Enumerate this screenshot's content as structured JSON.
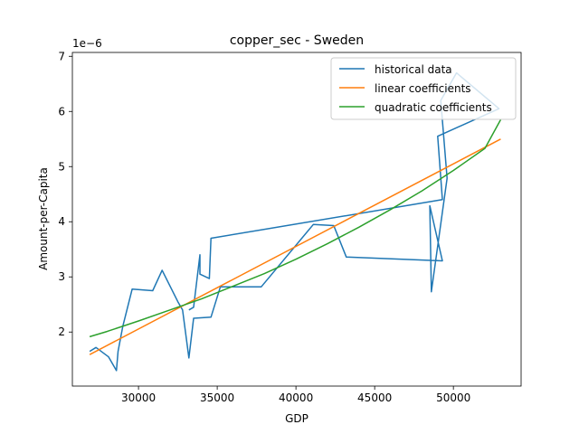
{
  "chart_data": {
    "type": "line",
    "title": "copper_sec - Sweden",
    "xlabel": "GDP",
    "ylabel": "Amount-per-Capita",
    "y_offset_label": "1e−6",
    "xlim": [
      25800,
      54300
    ],
    "ylim": [
      1.02,
      7.07
    ],
    "x_ticks": [
      30000,
      35000,
      40000,
      45000,
      50000
    ],
    "x_tick_labels": [
      "30000",
      "35000",
      "40000",
      "45000",
      "50000"
    ],
    "y_ticks": [
      2,
      3,
      4,
      5,
      6,
      7
    ],
    "y_tick_labels": [
      "2",
      "3",
      "4",
      "5",
      "6",
      "7"
    ],
    "grid": false,
    "legend_position": "top-right",
    "series": [
      {
        "name": "historical data",
        "color": "#1f77b4",
        "points": [
          [
            26900,
            1.65
          ],
          [
            27300,
            1.72
          ],
          [
            28100,
            1.55
          ],
          [
            28600,
            1.3
          ],
          [
            28700,
            1.65
          ],
          [
            29000,
            2.1
          ],
          [
            29600,
            2.78
          ],
          [
            30900,
            2.75
          ],
          [
            31500,
            3.12
          ],
          [
            32500,
            2.55
          ],
          [
            32800,
            2.4
          ],
          [
            33200,
            1.53
          ],
          [
            33500,
            2.25
          ],
          [
            34600,
            2.27
          ],
          [
            35200,
            2.82
          ],
          [
            37800,
            2.82
          ],
          [
            41100,
            3.95
          ],
          [
            42400,
            3.93
          ],
          [
            43200,
            3.36
          ],
          [
            49300,
            3.29
          ],
          [
            48500,
            4.29
          ],
          [
            48600,
            2.73
          ],
          [
            49600,
            4.79
          ],
          [
            49200,
            6.2
          ],
          [
            50200,
            6.7
          ],
          [
            52900,
            6.05
          ],
          [
            49000,
            5.55
          ],
          [
            49300,
            4.4
          ],
          [
            34600,
            3.7
          ],
          [
            34500,
            2.97
          ],
          [
            33900,
            3.05
          ],
          [
            33900,
            3.4
          ],
          [
            33500,
            2.45
          ],
          [
            33200,
            2.4
          ]
        ]
      },
      {
        "name": "linear coefficients",
        "color": "#ff7f0e",
        "points": [
          [
            26900,
            1.59
          ],
          [
            53000,
            5.5
          ]
        ]
      },
      {
        "name": "quadratic coefficients",
        "color": "#2ca02c",
        "points": [
          [
            26900,
            1.915
          ],
          [
            28000,
            2.01
          ],
          [
            30000,
            2.2
          ],
          [
            32000,
            2.4
          ],
          [
            34000,
            2.6
          ],
          [
            36000,
            2.83
          ],
          [
            38000,
            3.06
          ],
          [
            40000,
            3.32
          ],
          [
            42000,
            3.6
          ],
          [
            44000,
            3.9
          ],
          [
            46000,
            4.22
          ],
          [
            48000,
            4.56
          ],
          [
            50000,
            4.93
          ],
          [
            52000,
            5.33
          ],
          [
            53000,
            5.85
          ]
        ]
      }
    ]
  }
}
